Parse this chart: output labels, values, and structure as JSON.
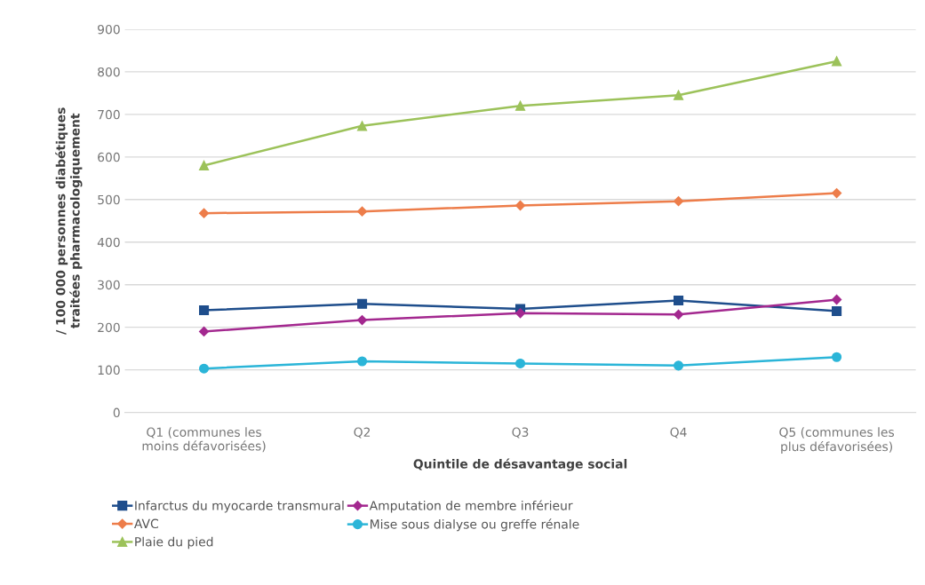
{
  "chart_data": {
    "type": "line",
    "xlabel": "Quintile de désavantage social",
    "ylabel": "/ 100 000 personnes diabétiques\ntraitées pharmacologiquement",
    "categories": [
      "Q1 (communes les\nmoins défavorisées)",
      "Q2",
      "Q3",
      "Q4",
      "Q5 (communes les\nplus défavorisées)"
    ],
    "series": [
      {
        "name": "Infarctus du myocarde transmural",
        "color": "#1f4e8c",
        "marker": "square",
        "values": [
          240,
          255,
          243,
          263,
          238
        ]
      },
      {
        "name": "AVC",
        "color": "#ed7d4a",
        "marker": "diamond",
        "values": [
          468,
          472,
          486,
          496,
          515
        ]
      },
      {
        "name": "Plaie du pied",
        "color": "#9cc25a",
        "marker": "triangle",
        "values": [
          580,
          673,
          720,
          745,
          825
        ]
      },
      {
        "name": "Amputation de membre inférieur",
        "color": "#a3288f",
        "marker": "diamond",
        "values": [
          190,
          217,
          233,
          230,
          265
        ]
      },
      {
        "name": "Mise sous dialyse ou greffe rénale",
        "color": "#2bb5d8",
        "marker": "circle",
        "values": [
          103,
          120,
          115,
          110,
          130
        ]
      }
    ],
    "ylim": [
      0,
      900
    ],
    "yticks": [
      0,
      100,
      200,
      300,
      400,
      500,
      600,
      700,
      800,
      900
    ],
    "grid": "y",
    "legend": "bottom",
    "line_style": "solid"
  }
}
